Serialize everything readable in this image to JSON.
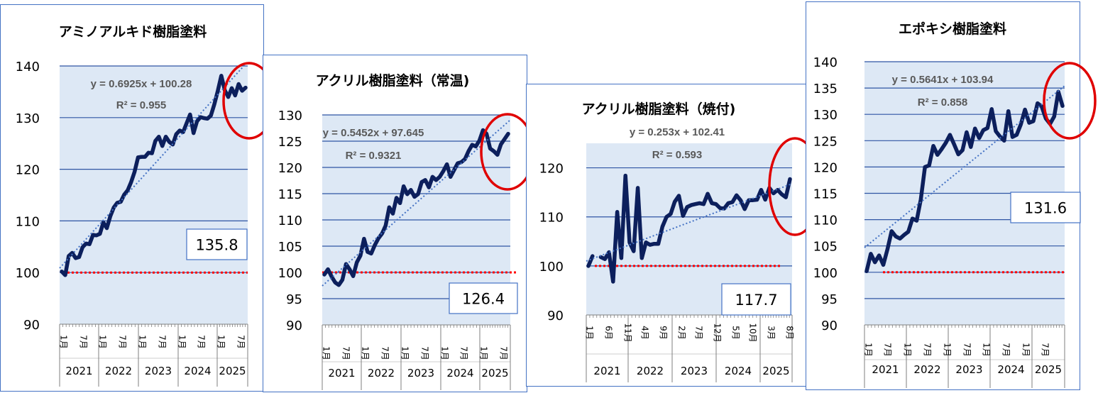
{
  "chart_data": [
    {
      "type": "line",
      "title": "アミノアルキド樹脂塗料",
      "yticks": [
        140,
        130,
        120,
        110,
        100,
        90
      ],
      "ylim": [
        90,
        140
      ],
      "month_ticks": [
        "1月",
        "7月",
        "1月",
        "7月",
        "1月",
        "7月",
        "1月",
        "7月",
        "1月",
        "7月"
      ],
      "years": [
        "2021",
        "2022",
        "2023",
        "2024",
        "2025"
      ],
      "series": [
        {
          "values": [
            100.2,
            99.5,
            103.2,
            103.8,
            102.8,
            103,
            104.9,
            105.6,
            105.5,
            107.3,
            107.2,
            107.5,
            109.7,
            108.6,
            110.9,
            112.6,
            113.5,
            113.7,
            115.1,
            115.9,
            117.5,
            119.5,
            122.3,
            122.4,
            122.4,
            123.2,
            123.1,
            125.5,
            126.3,
            124.5,
            126.3,
            125.3,
            124.8,
            126.8,
            127.5,
            127.2,
            128.9,
            130.6,
            127,
            129.3,
            130.1,
            129.9,
            129.8,
            130.4,
            132.6,
            135.2,
            138.1,
            135.3,
            134,
            135.7,
            134.3,
            136.5,
            135.2,
            135.8
          ]
        }
      ],
      "trendline": {
        "equation": "y = 0.6925x + 100.28",
        "r2": "R² = 0.955"
      },
      "baseline": 100,
      "last_value": "135.8"
    },
    {
      "type": "line",
      "title": "アクリル樹脂塗料（常温)",
      "yticks": [
        130,
        125,
        120,
        115,
        110,
        105,
        100,
        95,
        90
      ],
      "ylim": [
        90,
        130
      ],
      "month_ticks": [
        "1月",
        "7月",
        "1月",
        "7月",
        "1月",
        "7月",
        "1月",
        "7月",
        "1月",
        "7月"
      ],
      "years": [
        "2021",
        "2022",
        "2023",
        "2024",
        "2025"
      ],
      "series": [
        {
          "values": [
            99.6,
            100.6,
            99.2,
            98.1,
            97.6,
            98.6,
            101.6,
            100.6,
            99.3,
            101.9,
            103.2,
            106.4,
            103.9,
            103.6,
            105.2,
            106.5,
            107.4,
            108.9,
            112.4,
            111.2,
            114.2,
            113.2,
            116.4,
            114.9,
            115.7,
            114.4,
            114.9,
            117.2,
            117.6,
            116.2,
            118.2,
            117.6,
            118.2,
            119.3,
            120.6,
            118.2,
            119.5,
            120.8,
            121,
            121.6,
            123.1,
            124.3,
            124,
            125.1,
            127.1,
            126.4,
            123.6,
            123.1,
            122.4,
            124.4,
            125.4,
            126.4
          ]
        }
      ],
      "trendline": {
        "equation": "y = 0.5452x + 97.645",
        "r2": "R² = 0.9321"
      },
      "baseline": 100,
      "last_value": "126.4"
    },
    {
      "type": "line",
      "title": "アクリル樹脂塗料（焼付)",
      "yticks": [
        120,
        110,
        100,
        90
      ],
      "ylim": [
        90,
        125
      ],
      "month_ticks": [
        "1月",
        "6月",
        "11月",
        "4月",
        "9月",
        "2月",
        "7月",
        "12月",
        "5月",
        "10月",
        "3月",
        "8月"
      ],
      "years": [
        "2021",
        "2022",
        "2023",
        "2024",
        "2025"
      ],
      "series": [
        {
          "values": [
            100,
            102,
            null,
            101.8,
            101.4,
            102.8,
            96.8,
            111,
            101.6,
            118.4,
            104.8,
            103,
            115.9,
            101.6,
            104.8,
            104.3,
            104.5,
            104.5,
            108,
            110,
            110.6,
            113.1,
            114.3,
            110.2,
            112,
            112.4,
            112.6,
            112.8,
            112.6,
            114.7,
            112.8,
            112.6,
            111.8,
            111.7,
            112.8,
            113,
            114.4,
            113.4,
            111.6,
            113.4,
            113.4,
            113.5,
            115.5,
            113.5,
            115.9,
            114.8,
            115.5,
            114.6,
            114,
            117.7
          ]
        }
      ],
      "trendline": {
        "equation": "y = 0.253x + 102.41",
        "r2": "R² = 0.593"
      },
      "baseline": 100,
      "last_value": "117.7"
    },
    {
      "type": "line",
      "title": "エポキシ樹脂塗料",
      "yticks": [
        140,
        135,
        130,
        125,
        120,
        115,
        110,
        105,
        100,
        95,
        90
      ],
      "ylim": [
        90,
        140
      ],
      "month_ticks": [
        "1月",
        "7月",
        "1月",
        "7月",
        "1月",
        "7月",
        "1月",
        "7月",
        "1月",
        "7月"
      ],
      "years": [
        "2021",
        "2022",
        "2023",
        "2024",
        "2025"
      ],
      "series": [
        {
          "values": [
            100.2,
            103.5,
            101.9,
            103.2,
            101.4,
            104.4,
            107.8,
            106.8,
            106.4,
            107.1,
            107.7,
            110.2,
            109.8,
            113.8,
            120,
            120.3,
            124,
            122.3,
            123.4,
            124.6,
            126.1,
            124.3,
            122.4,
            123.2,
            126.6,
            123.8,
            127.3,
            125.5,
            127,
            127.4,
            131,
            126.8,
            125.8,
            125,
            130.6,
            125.7,
            126.1,
            128.1,
            130.9,
            128.4,
            128.7,
            132.1,
            131.5,
            129.2,
            128.2,
            129.6,
            134.3,
            131.6
          ]
        }
      ],
      "trendline": {
        "equation": "y = 0.5641x + 103.94",
        "r2": "R² = 0.858"
      },
      "baseline": 100,
      "last_value": "131.6"
    }
  ]
}
